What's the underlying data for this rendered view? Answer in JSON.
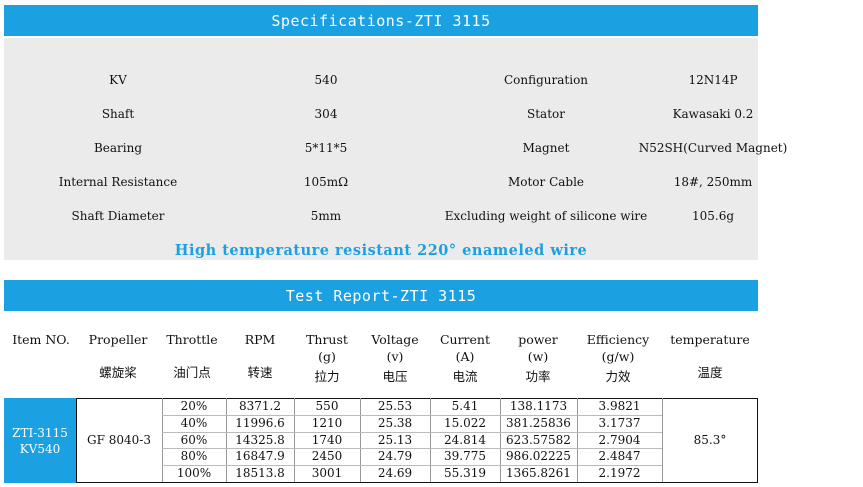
{
  "colors": {
    "banner": "#1ba0e2",
    "highlight": "#1ba0e2",
    "spec_bg": "#ebebeb",
    "item_cell": "#1ba0e2"
  },
  "spec_title": "Specifications-ZTI 3115",
  "specs": [
    {
      "label": "KV",
      "value": "540",
      "label2": "Configuration",
      "value2": "12N14P"
    },
    {
      "label": "Shaft",
      "value": "304",
      "label2": "Stator",
      "value2": "Kawasaki 0.2"
    },
    {
      "label": "Bearing",
      "value": "5*11*5",
      "label2": "Magnet",
      "value2": "N52SH(Curved Magnet)"
    },
    {
      "label": "Internal Resistance",
      "value": "105mΩ",
      "label2": "Motor Cable",
      "value2": "18#, 250mm"
    },
    {
      "label": "Shaft Diameter",
      "value": "5mm",
      "label2": "Excluding weight of silicone wire",
      "value2": "105.6g"
    }
  ],
  "highlight_text": "High temperature resistant 220°  enameled wire",
  "test_title": "Test Report-ZTI 3115",
  "headers": [
    {
      "en": "Item NO.",
      "zh": ""
    },
    {
      "en": "Propeller",
      "zh": "螺旋桨"
    },
    {
      "en": "Throttle",
      "zh": "油门点"
    },
    {
      "en": "RPM",
      "zh": "转速"
    },
    {
      "en": "Thrust\n(g)",
      "zh": "拉力"
    },
    {
      "en": "Voltage\n(v)",
      "zh": "电压"
    },
    {
      "en": "Current\n(A)",
      "zh": "电流"
    },
    {
      "en": "power\n(w)",
      "zh": "功率"
    },
    {
      "en": "Efficiency\n(g/w)",
      "zh": "力效"
    },
    {
      "en": "temperature",
      "zh": "温度"
    }
  ],
  "item_no": "ZTI-3115\nKV540",
  "propeller": "GF 8040-3",
  "temperature": "85.3°",
  "rows": [
    {
      "throttle": "20%",
      "rpm": "8371.2",
      "thrust": "550",
      "voltage": "25.53",
      "current": "5.41",
      "power": "138.1173",
      "efficiency": "3.9821"
    },
    {
      "throttle": "40%",
      "rpm": "11996.6",
      "thrust": "1210",
      "voltage": "25.38",
      "current": "15.022",
      "power": "381.25836",
      "efficiency": "3.1737"
    },
    {
      "throttle": "60%",
      "rpm": "14325.8",
      "thrust": "1740",
      "voltage": "25.13",
      "current": "24.814",
      "power": "623.57582",
      "efficiency": "2.7904"
    },
    {
      "throttle": "80%",
      "rpm": "16847.9",
      "thrust": "2450",
      "voltage": "24.79",
      "current": "39.775",
      "power": "986.02225",
      "efficiency": "2.4847"
    },
    {
      "throttle": "100%",
      "rpm": "18513.8",
      "thrust": "3001",
      "voltage": "24.69",
      "current": "55.319",
      "power": "1365.8261",
      "efficiency": "2.1972"
    }
  ]
}
